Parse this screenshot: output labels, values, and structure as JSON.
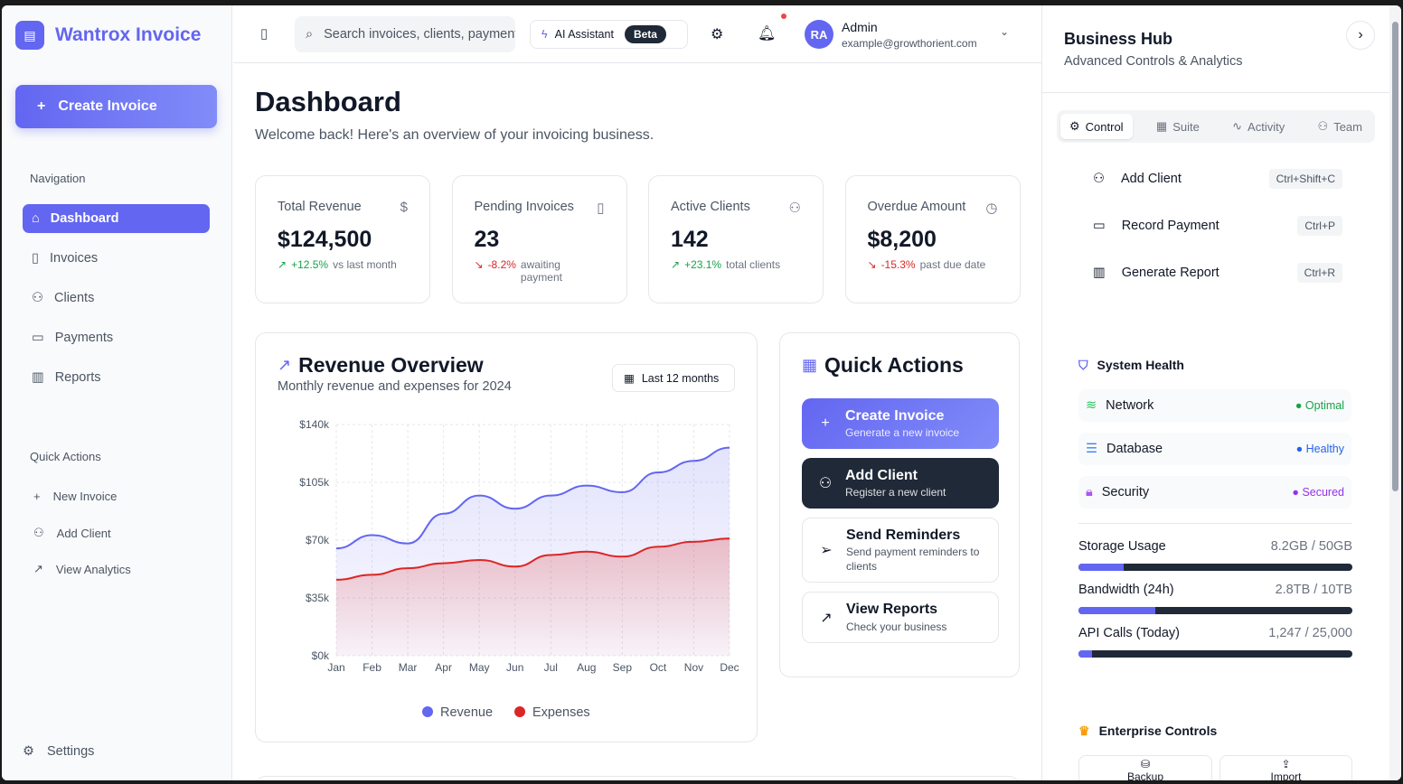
{
  "app": {
    "name": "Wantrox Invoice",
    "create_label": "Create Invoice"
  },
  "sidebar": {
    "nav_heading": "Navigation",
    "items": [
      {
        "label": "Dashboard",
        "icon": "home-icon"
      },
      {
        "label": "Invoices",
        "icon": "file-icon"
      },
      {
        "label": "Clients",
        "icon": "users-icon"
      },
      {
        "label": "Payments",
        "icon": "credit-card-icon"
      },
      {
        "label": "Reports",
        "icon": "bar-chart-icon"
      }
    ],
    "qa_heading": "Quick Actions",
    "quick": [
      {
        "label": "New Invoice"
      },
      {
        "label": "Add Client"
      },
      {
        "label": "View Analytics"
      }
    ],
    "settings": "Settings"
  },
  "header": {
    "search_placeholder": "Search invoices, clients, payments...",
    "ai_label": "AI Assistant",
    "beta": "Beta",
    "user": {
      "initials": "RA",
      "name": "Admin",
      "email": "example@growthorient.com"
    }
  },
  "page": {
    "title": "Dashboard",
    "subtitle": "Welcome back! Here's an overview of your invoicing business."
  },
  "stats": [
    {
      "title": "Total Revenue",
      "icon": "dollar-icon",
      "value": "$124,500",
      "change": "+12.5%",
      "note": "vs last month",
      "trend": "up"
    },
    {
      "title": "Pending Invoices",
      "icon": "file-icon",
      "value": "23",
      "change": "-8.2%",
      "note": "awaiting payment",
      "trend": "down"
    },
    {
      "title": "Active Clients",
      "icon": "users-icon",
      "value": "142",
      "change": "+23.1%",
      "note": "total clients",
      "trend": "up"
    },
    {
      "title": "Overdue Amount",
      "icon": "clock-icon",
      "value": "$8,200",
      "change": "-15.3%",
      "note": "past due date",
      "trend": "down"
    }
  ],
  "revenue": {
    "title": "Revenue Overview",
    "subtitle": "Monthly revenue and expenses for 2024",
    "range": "Last 12 months"
  },
  "chart_data": {
    "type": "area",
    "categories": [
      "Jan",
      "Feb",
      "Mar",
      "Apr",
      "May",
      "Jun",
      "Jul",
      "Aug",
      "Sep",
      "Oct",
      "Nov",
      "Dec"
    ],
    "series": [
      {
        "name": "Revenue",
        "color": "#6366f1",
        "values": [
          65,
          73,
          68,
          86,
          97,
          89,
          97,
          103,
          99,
          111,
          118,
          126
        ]
      },
      {
        "name": "Expenses",
        "color": "#dc2626",
        "values": [
          46,
          49,
          53,
          56,
          58,
          54,
          61,
          63,
          60,
          66,
          69,
          71
        ]
      }
    ],
    "yticks": [
      "$0k",
      "$35k",
      "$70k",
      "$105k",
      "$140k"
    ],
    "ylim": [
      0,
      140
    ],
    "grid": true,
    "legend": "bottom"
  },
  "quick_actions": {
    "title": "Quick Actions",
    "items": [
      {
        "title": "Create Invoice",
        "desc": "Generate a new invoice"
      },
      {
        "title": "Add Client",
        "desc": "Register a new client"
      },
      {
        "title": "Send Reminders",
        "desc": "Send payment reminders to clients"
      },
      {
        "title": "View Reports",
        "desc": "Check your business"
      }
    ]
  },
  "hub": {
    "title": "Business Hub",
    "subtitle": "Advanced Controls & Analytics",
    "tabs": [
      "Control",
      "Suite",
      "Activity",
      "Team"
    ],
    "commands": [
      {
        "label": "Add Client",
        "kbd": "Ctrl+Shift+C"
      },
      {
        "label": "Record Payment",
        "kbd": "Ctrl+P"
      },
      {
        "label": "Generate Report",
        "kbd": "Ctrl+R"
      }
    ],
    "health_title": "System Health",
    "health": [
      {
        "label": "Network",
        "status": "Optimal",
        "color": "#22c55e"
      },
      {
        "label": "Database",
        "status": "Healthy",
        "color": "#3b82f6"
      },
      {
        "label": "Security",
        "status": "Secured",
        "color": "#a855f7"
      }
    ],
    "usage": [
      {
        "label": "Storage Usage",
        "value": "8.2GB / 50GB",
        "pct": 16.4
      },
      {
        "label": "Bandwidth (24h)",
        "value": "2.8TB / 10TB",
        "pct": 28
      },
      {
        "label": "API Calls (Today)",
        "value": "1,247 / 25,000",
        "pct": 5
      }
    ],
    "enterprise_title": "Enterprise Controls",
    "enterprise": [
      "Backup",
      "Import"
    ]
  }
}
